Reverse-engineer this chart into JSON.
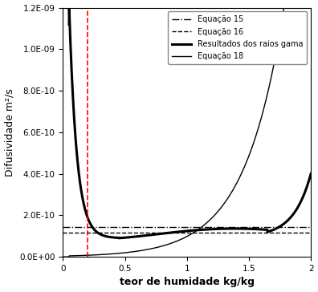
{
  "xlabel": "teor de humidade kg/kg",
  "ylabel": "Difusividade m²/s",
  "xlim": [
    0,
    2.0
  ],
  "ylim": [
    0,
    1.2e-09
  ],
  "yticks": [
    0.0,
    2e-10,
    4e-10,
    6e-10,
    8e-10,
    1e-09,
    1.2e-09
  ],
  "xticks": [
    0,
    0.5,
    1.0,
    1.5,
    2.0
  ],
  "eq15_value": 1.45e-10,
  "eq16_value": 1.18e-10,
  "red_vline_x": 0.2,
  "legend_labels": [
    "Equação 15",
    "Equação 16",
    "Resultados dos raios gama",
    "Equação 18"
  ],
  "background_color": "#ffffff",
  "line_color": "#000000",
  "red_color": "#ff0000"
}
